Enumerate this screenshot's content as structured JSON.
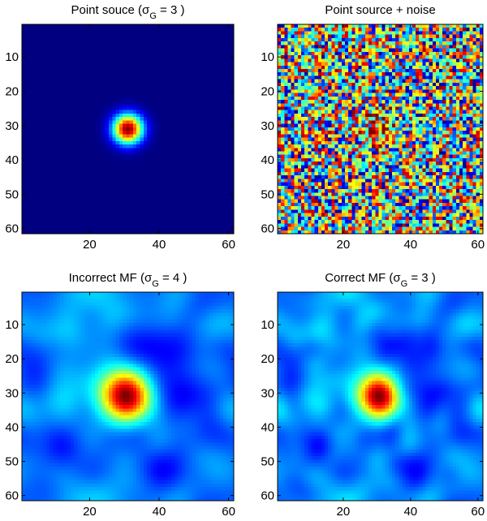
{
  "chart_data": [
    {
      "type": "heatmap",
      "title_prefix": "Point souce (σ",
      "title_sub": "G",
      "title_suffix": " = 3 )",
      "sigma_G": 3,
      "colormap": "jet",
      "grid_size": [
        61,
        61
      ],
      "xlim": [
        1,
        61
      ],
      "ylim": [
        1,
        61
      ],
      "xticks": [
        20,
        40,
        60
      ],
      "yticks": [
        10,
        20,
        30,
        40,
        50,
        60
      ],
      "description_values": {
        "peak_x": 31,
        "peak_y": 31,
        "peak_value": 1.0,
        "background_value": 0.0
      }
    },
    {
      "type": "heatmap",
      "title_prefix": "Point source + noise",
      "title_sub": "",
      "title_suffix": "",
      "colormap": "jet",
      "grid_size": [
        61,
        61
      ],
      "xlim": [
        1,
        61
      ],
      "ylim": [
        1,
        61
      ],
      "xticks": [
        20,
        40,
        60
      ],
      "yticks": [
        10,
        20,
        30,
        40,
        50,
        60
      ],
      "description_values": {
        "peak_x": 31,
        "peak_y": 31,
        "noise": "uniform random"
      }
    },
    {
      "type": "heatmap",
      "title_prefix": "Incorrect MF (σ",
      "title_sub": "G",
      "title_suffix": " = 4 )",
      "sigma_G": 4,
      "colormap": "jet",
      "grid_size": [
        61,
        61
      ],
      "xlim": [
        1,
        61
      ],
      "ylim": [
        1,
        61
      ],
      "xticks": [
        20,
        40,
        60
      ],
      "yticks": [
        10,
        20,
        30,
        40,
        50,
        60
      ],
      "description_values": {
        "peak_x": 31,
        "peak_y": 31
      }
    },
    {
      "type": "heatmap",
      "title_prefix": "Correct MF (σ",
      "title_sub": "G",
      "title_suffix": " = 3 )",
      "sigma_G": 3,
      "colormap": "jet",
      "grid_size": [
        61,
        61
      ],
      "xlim": [
        1,
        61
      ],
      "ylim": [
        1,
        61
      ],
      "xticks": [
        20,
        40,
        60
      ],
      "yticks": [
        10,
        20,
        30,
        40,
        50,
        60
      ],
      "description_values": {
        "peak_x": 31,
        "peak_y": 31
      }
    }
  ]
}
